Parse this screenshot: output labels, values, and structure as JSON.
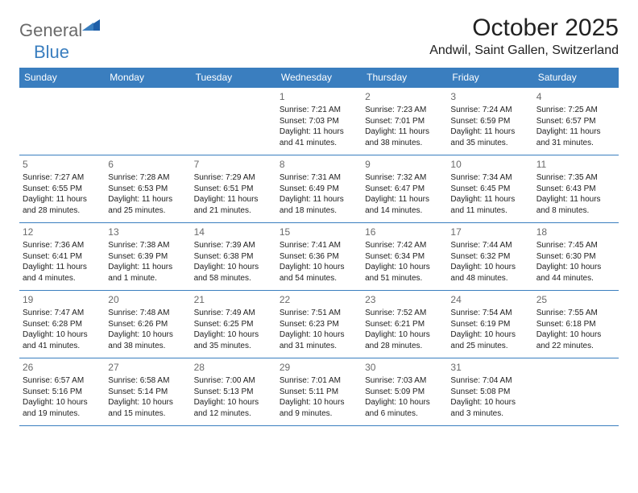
{
  "logo": {
    "general": "General",
    "blue": "Blue"
  },
  "header": {
    "month_title": "October 2025",
    "location": "Andwil, Saint Gallen, Switzerland"
  },
  "colors": {
    "header_bg": "#3a7ebf",
    "header_text": "#ffffff",
    "border": "#3a7ebf",
    "daynum": "#6a6a6a",
    "body_text": "#212121",
    "logo_general": "#6a6a6a",
    "logo_blue": "#3a7ebf"
  },
  "typography": {
    "month_title_fontsize": 30,
    "location_fontsize": 16,
    "dayheader_fontsize": 12,
    "daynum_fontsize": 12,
    "cell_fontsize": 10
  },
  "day_headers": [
    "Sunday",
    "Monday",
    "Tuesday",
    "Wednesday",
    "Thursday",
    "Friday",
    "Saturday"
  ],
  "weeks": [
    [
      {
        "day": "",
        "sunrise": "",
        "sunset": "",
        "daylight": ""
      },
      {
        "day": "",
        "sunrise": "",
        "sunset": "",
        "daylight": ""
      },
      {
        "day": "",
        "sunrise": "",
        "sunset": "",
        "daylight": ""
      },
      {
        "day": "1",
        "sunrise": "Sunrise: 7:21 AM",
        "sunset": "Sunset: 7:03 PM",
        "daylight": "Daylight: 11 hours and 41 minutes."
      },
      {
        "day": "2",
        "sunrise": "Sunrise: 7:23 AM",
        "sunset": "Sunset: 7:01 PM",
        "daylight": "Daylight: 11 hours and 38 minutes."
      },
      {
        "day": "3",
        "sunrise": "Sunrise: 7:24 AM",
        "sunset": "Sunset: 6:59 PM",
        "daylight": "Daylight: 11 hours and 35 minutes."
      },
      {
        "day": "4",
        "sunrise": "Sunrise: 7:25 AM",
        "sunset": "Sunset: 6:57 PM",
        "daylight": "Daylight: 11 hours and 31 minutes."
      }
    ],
    [
      {
        "day": "5",
        "sunrise": "Sunrise: 7:27 AM",
        "sunset": "Sunset: 6:55 PM",
        "daylight": "Daylight: 11 hours and 28 minutes."
      },
      {
        "day": "6",
        "sunrise": "Sunrise: 7:28 AM",
        "sunset": "Sunset: 6:53 PM",
        "daylight": "Daylight: 11 hours and 25 minutes."
      },
      {
        "day": "7",
        "sunrise": "Sunrise: 7:29 AM",
        "sunset": "Sunset: 6:51 PM",
        "daylight": "Daylight: 11 hours and 21 minutes."
      },
      {
        "day": "8",
        "sunrise": "Sunrise: 7:31 AM",
        "sunset": "Sunset: 6:49 PM",
        "daylight": "Daylight: 11 hours and 18 minutes."
      },
      {
        "day": "9",
        "sunrise": "Sunrise: 7:32 AM",
        "sunset": "Sunset: 6:47 PM",
        "daylight": "Daylight: 11 hours and 14 minutes."
      },
      {
        "day": "10",
        "sunrise": "Sunrise: 7:34 AM",
        "sunset": "Sunset: 6:45 PM",
        "daylight": "Daylight: 11 hours and 11 minutes."
      },
      {
        "day": "11",
        "sunrise": "Sunrise: 7:35 AM",
        "sunset": "Sunset: 6:43 PM",
        "daylight": "Daylight: 11 hours and 8 minutes."
      }
    ],
    [
      {
        "day": "12",
        "sunrise": "Sunrise: 7:36 AM",
        "sunset": "Sunset: 6:41 PM",
        "daylight": "Daylight: 11 hours and 4 minutes."
      },
      {
        "day": "13",
        "sunrise": "Sunrise: 7:38 AM",
        "sunset": "Sunset: 6:39 PM",
        "daylight": "Daylight: 11 hours and 1 minute."
      },
      {
        "day": "14",
        "sunrise": "Sunrise: 7:39 AM",
        "sunset": "Sunset: 6:38 PM",
        "daylight": "Daylight: 10 hours and 58 minutes."
      },
      {
        "day": "15",
        "sunrise": "Sunrise: 7:41 AM",
        "sunset": "Sunset: 6:36 PM",
        "daylight": "Daylight: 10 hours and 54 minutes."
      },
      {
        "day": "16",
        "sunrise": "Sunrise: 7:42 AM",
        "sunset": "Sunset: 6:34 PM",
        "daylight": "Daylight: 10 hours and 51 minutes."
      },
      {
        "day": "17",
        "sunrise": "Sunrise: 7:44 AM",
        "sunset": "Sunset: 6:32 PM",
        "daylight": "Daylight: 10 hours and 48 minutes."
      },
      {
        "day": "18",
        "sunrise": "Sunrise: 7:45 AM",
        "sunset": "Sunset: 6:30 PM",
        "daylight": "Daylight: 10 hours and 44 minutes."
      }
    ],
    [
      {
        "day": "19",
        "sunrise": "Sunrise: 7:47 AM",
        "sunset": "Sunset: 6:28 PM",
        "daylight": "Daylight: 10 hours and 41 minutes."
      },
      {
        "day": "20",
        "sunrise": "Sunrise: 7:48 AM",
        "sunset": "Sunset: 6:26 PM",
        "daylight": "Daylight: 10 hours and 38 minutes."
      },
      {
        "day": "21",
        "sunrise": "Sunrise: 7:49 AM",
        "sunset": "Sunset: 6:25 PM",
        "daylight": "Daylight: 10 hours and 35 minutes."
      },
      {
        "day": "22",
        "sunrise": "Sunrise: 7:51 AM",
        "sunset": "Sunset: 6:23 PM",
        "daylight": "Daylight: 10 hours and 31 minutes."
      },
      {
        "day": "23",
        "sunrise": "Sunrise: 7:52 AM",
        "sunset": "Sunset: 6:21 PM",
        "daylight": "Daylight: 10 hours and 28 minutes."
      },
      {
        "day": "24",
        "sunrise": "Sunrise: 7:54 AM",
        "sunset": "Sunset: 6:19 PM",
        "daylight": "Daylight: 10 hours and 25 minutes."
      },
      {
        "day": "25",
        "sunrise": "Sunrise: 7:55 AM",
        "sunset": "Sunset: 6:18 PM",
        "daylight": "Daylight: 10 hours and 22 minutes."
      }
    ],
    [
      {
        "day": "26",
        "sunrise": "Sunrise: 6:57 AM",
        "sunset": "Sunset: 5:16 PM",
        "daylight": "Daylight: 10 hours and 19 minutes."
      },
      {
        "day": "27",
        "sunrise": "Sunrise: 6:58 AM",
        "sunset": "Sunset: 5:14 PM",
        "daylight": "Daylight: 10 hours and 15 minutes."
      },
      {
        "day": "28",
        "sunrise": "Sunrise: 7:00 AM",
        "sunset": "Sunset: 5:13 PM",
        "daylight": "Daylight: 10 hours and 12 minutes."
      },
      {
        "day": "29",
        "sunrise": "Sunrise: 7:01 AM",
        "sunset": "Sunset: 5:11 PM",
        "daylight": "Daylight: 10 hours and 9 minutes."
      },
      {
        "day": "30",
        "sunrise": "Sunrise: 7:03 AM",
        "sunset": "Sunset: 5:09 PM",
        "daylight": "Daylight: 10 hours and 6 minutes."
      },
      {
        "day": "31",
        "sunrise": "Sunrise: 7:04 AM",
        "sunset": "Sunset: 5:08 PM",
        "daylight": "Daylight: 10 hours and 3 minutes."
      },
      {
        "day": "",
        "sunrise": "",
        "sunset": "",
        "daylight": ""
      }
    ]
  ]
}
